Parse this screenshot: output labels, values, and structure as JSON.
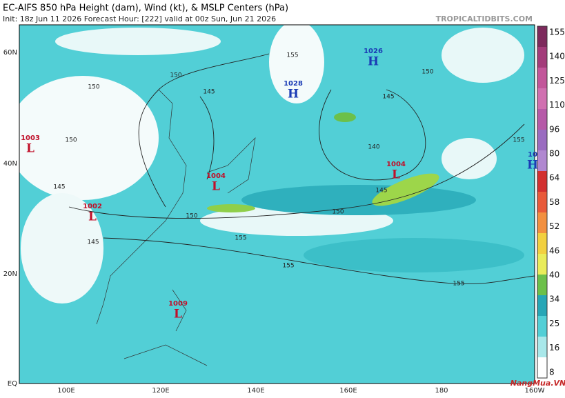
{
  "header": {
    "title": "EC-AIFS 850 hPa Height (dam), Wind (kt), & MSLP Centers (hPa)",
    "subtitle": "Init: 18z Jun 11 2026   Forecast Hour: [222]   valid at 00z Sun, Jun 21 2026",
    "source": "TROPICALTIDBITS.COM"
  },
  "map": {
    "lat_labels": [
      "60N",
      "40N",
      "20N",
      "EQ"
    ],
    "lon_labels": [
      "100E",
      "120E",
      "140E",
      "160E",
      "180",
      "160W"
    ],
    "centers": [
      {
        "pressure": "1003",
        "type": "L"
      },
      {
        "pressure": "1002",
        "type": "L"
      },
      {
        "pressure": "1004",
        "type": "L"
      },
      {
        "pressure": "1009",
        "type": "L"
      },
      {
        "pressure": "1004",
        "type": "L"
      },
      {
        "pressure": "1028",
        "type": "H"
      },
      {
        "pressure": "1026",
        "type": "H"
      },
      {
        "pressure": "10",
        "type": "H"
      }
    ],
    "contour_labels": [
      "155",
      "150",
      "150",
      "150",
      "145",
      "145",
      "145",
      "150",
      "150",
      "150",
      "145",
      "140",
      "145",
      "155",
      "155",
      "155",
      "155"
    ]
  },
  "colorbar": {
    "ticks": [
      155,
      140,
      125,
      110,
      96,
      80,
      64,
      58,
      52,
      46,
      40,
      34,
      25,
      16,
      8
    ]
  },
  "watermark": "NangMua.VN"
}
